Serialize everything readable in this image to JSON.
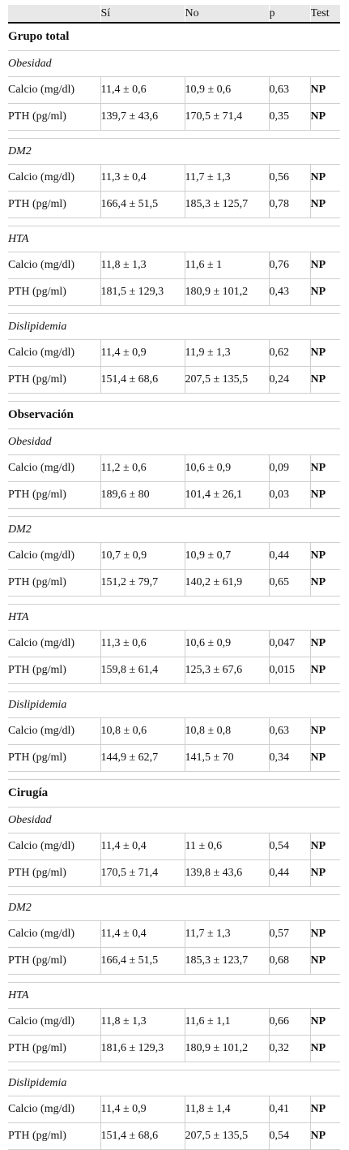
{
  "header": {
    "col_label": "",
    "col_si": "Sí",
    "col_no": "No",
    "col_p": "p",
    "col_test": "Test"
  },
  "groups": [
    {
      "name": "Grupo total",
      "subgroups": [
        {
          "name": "Obesidad",
          "rows": [
            {
              "label": "Calcio (mg/dl)",
              "si": "11,4 ± 0,6",
              "no": "10,9 ± 0,6",
              "p": "0,63",
              "test": "NP"
            },
            {
              "label": "PTH (pg/ml)",
              "si": "139,7 ± 43,6",
              "no": "170,5 ± 71,4",
              "p": "0,35",
              "test": "NP"
            }
          ]
        },
        {
          "name": "DM2",
          "rows": [
            {
              "label": "Calcio (mg/dl)",
              "si": "11,3 ± 0,4",
              "no": "11,7 ± 1,3",
              "p": "0,56",
              "test": "NP"
            },
            {
              "label": "PTH (pg/ml)",
              "si": "166,4 ± 51,5",
              "no": "185,3 ± 125,7",
              "p": "0,78",
              "test": "NP"
            }
          ]
        },
        {
          "name": "HTA",
          "rows": [
            {
              "label": "Calcio (mg/dl)",
              "si": "11,8 ± 1,3",
              "no": "11,6 ± 1",
              "p": "0,76",
              "test": "NP"
            },
            {
              "label": "PTH (pg/ml)",
              "si": "181,5 ± 129,3",
              "no": "180,9 ± 101,2",
              "p": "0,43",
              "test": "NP"
            }
          ]
        },
        {
          "name": "Dislipidemia",
          "rows": [
            {
              "label": "Calcio (mg/dl)",
              "si": "11,4 ± 0,9",
              "no": "11,9 ± 1,3",
              "p": "0,62",
              "test": "NP"
            },
            {
              "label": "PTH (pg/ml)",
              "si": "151,4 ± 68,6",
              "no": "207,5 ± 135,5",
              "p": "0,24",
              "test": "NP"
            }
          ]
        }
      ]
    },
    {
      "name": "Observación",
      "subgroups": [
        {
          "name": "Obesidad",
          "rows": [
            {
              "label": "Calcio (mg/dl)",
              "si": "11,2 ± 0,6",
              "no": "10,6 ± 0,9",
              "p": "0,09",
              "test": "NP"
            },
            {
              "label": "PTH (pg/ml)",
              "si": "189,6 ± 80",
              "no": "101,4 ± 26,1",
              "p": "0,03",
              "test": "NP"
            }
          ]
        },
        {
          "name": "DM2",
          "flush": true,
          "rows": [
            {
              "label": "Calcio (mg/dl)",
              "si": "10,7 ± 0,9",
              "no": "10,9 ± 0,7",
              "p": "0,44",
              "test": "NP"
            },
            {
              "label": "PTH (pg/ml)",
              "si": "151,2 ± 79,7",
              "no": "140,2 ± 61,9",
              "p": "0,65",
              "test": "NP"
            }
          ]
        },
        {
          "name": "HTA",
          "rows": [
            {
              "label": "Calcio (mg/dl)",
              "si": "11,3 ± 0,6",
              "no": "10,6 ± 0,9",
              "p": "0,047",
              "test": "NP"
            },
            {
              "label": "PTH (pg/ml)",
              "si": "159,8 ± 61,4",
              "no": "125,3 ± 67,6",
              "p": "0,015",
              "test": "NP"
            }
          ]
        },
        {
          "name": "Dislipidemia",
          "rows": [
            {
              "label": "Calcio (mg/dl)",
              "si": "10,8 ± 0,6",
              "no": "10,8 ± 0,8",
              "p": "0,63",
              "test": "NP"
            },
            {
              "label": "PTH (pg/ml)",
              "si": "144,9 ± 62,7",
              "no": "141,5 ± 70",
              "p": "0,34",
              "test": "NP"
            }
          ]
        }
      ]
    },
    {
      "name": "Cirugía",
      "subgroups": [
        {
          "name": "Obesidad",
          "rows": [
            {
              "label": "Calcio (mg/dl)",
              "si": "11,4 ± 0,4",
              "no": "11 ± 0,6",
              "p": "0,54",
              "test": "NP"
            },
            {
              "label": "PTH (pg/ml)",
              "si": "170,5 ± 71,4",
              "no": "139,8 ± 43,6",
              "p": "0,44",
              "test": "NP"
            }
          ]
        },
        {
          "name": "DM2",
          "rows": [
            {
              "label": "Calcio (mg/dl)",
              "si": "11,4 ± 0,4",
              "no": "11,7 ± 1,3",
              "p": "0,57",
              "test": "NP"
            },
            {
              "label": "PTH (pg/ml)",
              "si": "166,4 ± 51,5",
              "no": "185,3 ± 123,7",
              "p": "0,68",
              "test": "NP"
            }
          ]
        },
        {
          "name": "HTA",
          "rows": [
            {
              "label": "Calcio (mg/dl)",
              "si": "11,8 ± 1,3",
              "no": "11,6 ± 1,1",
              "p": "0,66",
              "test": "NP"
            },
            {
              "label": "PTH (pg/ml)",
              "si": "181,6 ± 129,3",
              "no": "180,9 ± 101,2",
              "p": "0,32",
              "test": "NP"
            }
          ]
        },
        {
          "name": "Dislipidemia",
          "rows": [
            {
              "label": "Calcio (mg/dl)",
              "si": "11,4 ± 0,9",
              "no": "11,8 ± 1,4",
              "p": "0,41",
              "test": "NP"
            },
            {
              "label": "PTH (pg/ml)",
              "si": "151,4 ± 68,6",
              "no": "207,5 ± 135,5",
              "p": "0,54",
              "test": "NP"
            }
          ]
        }
      ]
    }
  ]
}
